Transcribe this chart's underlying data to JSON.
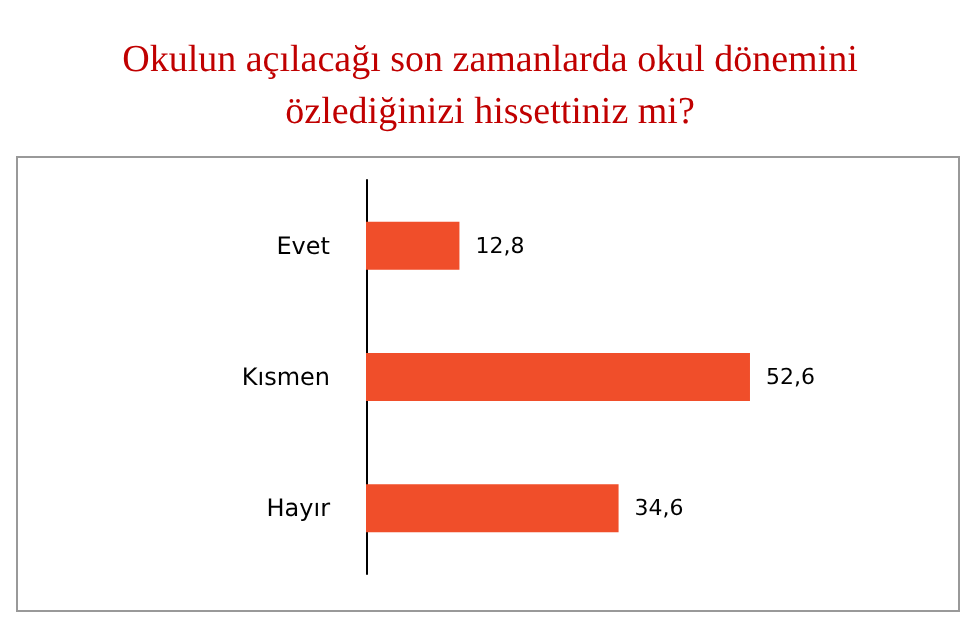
{
  "chart_data": {
    "type": "bar",
    "orientation": "horizontal",
    "title": "Okulun açılacağı son zamanlarda okul dönemini\nözlediğinizi hissettiniz mi?",
    "categories": [
      "Evet",
      "Kısmen",
      "Hayır"
    ],
    "values": [
      12.8,
      52.6,
      34.6
    ],
    "color": "#f04e2a",
    "value_labels": [
      "12,8",
      "52,6",
      "34,6"
    ]
  }
}
